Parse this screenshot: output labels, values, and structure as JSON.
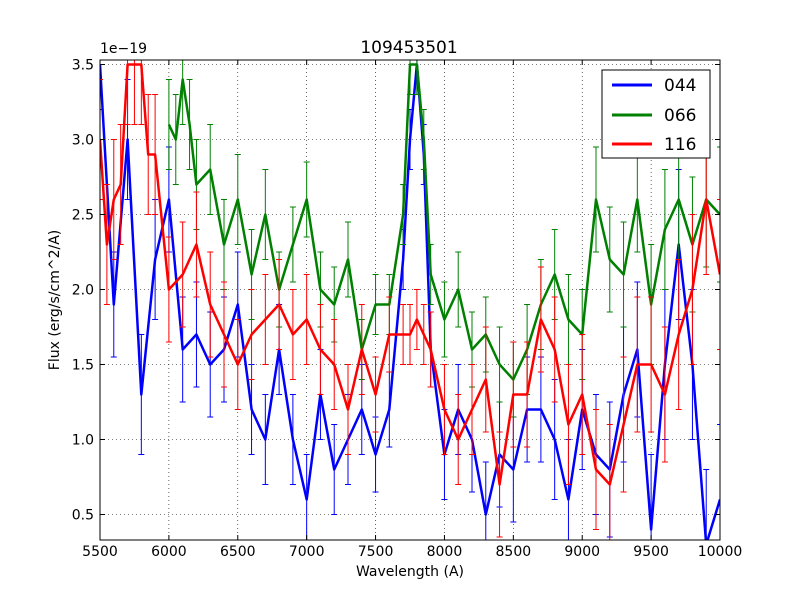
{
  "chart_data": {
    "type": "line",
    "title": "109453501",
    "xlabel": "Wavelength (A)",
    "ylabel": "Flux (erg/s/cm^2/A)",
    "y_offset_label": "1e−19",
    "xlim": [
      5500,
      10000
    ],
    "ylim": [
      0.33,
      3.53
    ],
    "xticks": [
      "5500",
      "6000",
      "6500",
      "7000",
      "7500",
      "8000",
      "8500",
      "9000",
      "9500",
      "10000"
    ],
    "yticks": [
      "0.5",
      "1.0",
      "1.5",
      "2.0",
      "2.5",
      "3.0",
      "3.5"
    ],
    "grid": true,
    "legend_position": "top-right",
    "series": [
      {
        "name": "044",
        "color": "#0000ff",
        "x": [
          5500,
          5600,
          5700,
          5800,
          5900,
          6000,
          6100,
          6200,
          6300,
          6400,
          6500,
          6600,
          6700,
          6800,
          6900,
          7000,
          7100,
          7200,
          7300,
          7400,
          7500,
          7600,
          7700,
          7750,
          7800,
          7850,
          7900,
          8000,
          8100,
          8200,
          8300,
          8400,
          8500,
          8600,
          8700,
          8800,
          8900,
          9000,
          9100,
          9200,
          9300,
          9400,
          9500,
          9600,
          9700,
          9800,
          9900,
          10000
        ],
        "y": [
          3.5,
          1.9,
          3.0,
          1.3,
          2.2,
          2.6,
          1.6,
          1.7,
          1.5,
          1.6,
          1.9,
          1.2,
          1.0,
          1.6,
          1.0,
          0.6,
          1.3,
          0.8,
          1.0,
          1.2,
          0.9,
          1.2,
          2.2,
          3.0,
          3.5,
          2.9,
          1.6,
          0.9,
          1.2,
          1.0,
          0.5,
          0.9,
          0.8,
          1.2,
          1.2,
          1.0,
          0.6,
          1.2,
          0.9,
          0.8,
          1.3,
          1.6,
          0.4,
          1.5,
          2.3,
          1.5,
          0.3,
          0.6
        ],
        "yerr": [
          0.3,
          0.35,
          0.4,
          0.4,
          0.4,
          0.35,
          0.35,
          0.35,
          0.35,
          0.35,
          0.35,
          0.3,
          0.3,
          0.3,
          0.3,
          0.3,
          0.3,
          0.3,
          0.3,
          0.3,
          0.25,
          0.25,
          0.2,
          0.2,
          0.2,
          0.2,
          0.25,
          0.3,
          0.3,
          0.35,
          0.35,
          0.35,
          0.35,
          0.35,
          0.35,
          0.4,
          0.4,
          0.4,
          0.4,
          0.45,
          0.45,
          0.45,
          0.5,
          0.5,
          0.5,
          0.5,
          0.5,
          0.5
        ]
      },
      {
        "name": "066",
        "color": "#008000",
        "x": [
          6000,
          6050,
          6100,
          6150,
          6200,
          6300,
          6400,
          6500,
          6600,
          6700,
          6800,
          6900,
          7000,
          7100,
          7200,
          7300,
          7400,
          7500,
          7600,
          7700,
          7750,
          7800,
          7850,
          7900,
          8000,
          8100,
          8200,
          8300,
          8400,
          8500,
          8600,
          8700,
          8800,
          8900,
          9000,
          9100,
          9200,
          9300,
          9400,
          9500,
          9600,
          9700,
          9800,
          9900,
          10000
        ],
        "y": [
          3.1,
          3.0,
          3.4,
          3.1,
          2.7,
          2.8,
          2.3,
          2.6,
          2.1,
          2.5,
          2.0,
          2.3,
          2.6,
          2.0,
          1.9,
          2.2,
          1.6,
          1.9,
          1.9,
          2.5,
          3.5,
          3.5,
          3.0,
          2.1,
          1.8,
          2.0,
          1.6,
          1.7,
          1.5,
          1.4,
          1.6,
          1.9,
          2.1,
          1.8,
          1.7,
          2.6,
          2.2,
          2.1,
          2.6,
          1.9,
          2.4,
          2.6,
          2.3,
          2.6,
          2.5
        ],
        "yerr": [
          0.3,
          0.3,
          0.3,
          0.3,
          0.3,
          0.3,
          0.3,
          0.3,
          0.3,
          0.3,
          0.25,
          0.25,
          0.25,
          0.25,
          0.25,
          0.25,
          0.2,
          0.2,
          0.2,
          0.2,
          0.2,
          0.2,
          0.2,
          0.2,
          0.25,
          0.25,
          0.25,
          0.25,
          0.25,
          0.25,
          0.3,
          0.3,
          0.3,
          0.3,
          0.3,
          0.35,
          0.35,
          0.35,
          0.35,
          0.4,
          0.4,
          0.4,
          0.45,
          0.45,
          0.45
        ]
      },
      {
        "name": "116",
        "color": "#ff0000",
        "x": [
          5500,
          5550,
          5600,
          5650,
          5700,
          5750,
          5800,
          5850,
          5900,
          6000,
          6100,
          6200,
          6300,
          6400,
          6500,
          6600,
          6700,
          6800,
          6900,
          7000,
          7100,
          7200,
          7300,
          7400,
          7500,
          7600,
          7700,
          7750,
          7800,
          7850,
          7900,
          8000,
          8100,
          8200,
          8300,
          8400,
          8500,
          8600,
          8700,
          8800,
          8900,
          9000,
          9100,
          9200,
          9300,
          9400,
          9500,
          9600,
          9700,
          9800,
          9900,
          10000
        ],
        "y": [
          3.0,
          2.3,
          2.6,
          2.7,
          3.5,
          3.5,
          3.5,
          2.9,
          2.9,
          2.0,
          2.1,
          2.3,
          1.9,
          1.7,
          1.5,
          1.7,
          1.8,
          1.9,
          1.7,
          1.8,
          1.6,
          1.5,
          1.2,
          1.6,
          1.3,
          1.7,
          1.7,
          1.7,
          1.8,
          1.7,
          1.6,
          1.2,
          1.0,
          1.2,
          1.4,
          0.7,
          1.3,
          1.3,
          1.8,
          1.6,
          1.1,
          1.3,
          0.8,
          0.7,
          1.1,
          1.5,
          1.5,
          1.3,
          1.7,
          2.0,
          2.6,
          2.1
        ],
        "yerr": [
          0.4,
          0.4,
          0.4,
          0.4,
          0.4,
          0.4,
          0.4,
          0.4,
          0.4,
          0.35,
          0.35,
          0.35,
          0.35,
          0.35,
          0.3,
          0.3,
          0.3,
          0.3,
          0.3,
          0.3,
          0.3,
          0.3,
          0.3,
          0.3,
          0.25,
          0.25,
          0.2,
          0.2,
          0.2,
          0.2,
          0.25,
          0.3,
          0.3,
          0.3,
          0.35,
          0.35,
          0.35,
          0.35,
          0.35,
          0.35,
          0.4,
          0.4,
          0.4,
          0.4,
          0.45,
          0.45,
          0.45,
          0.45,
          0.5,
          0.5,
          0.5,
          0.5
        ]
      }
    ]
  }
}
